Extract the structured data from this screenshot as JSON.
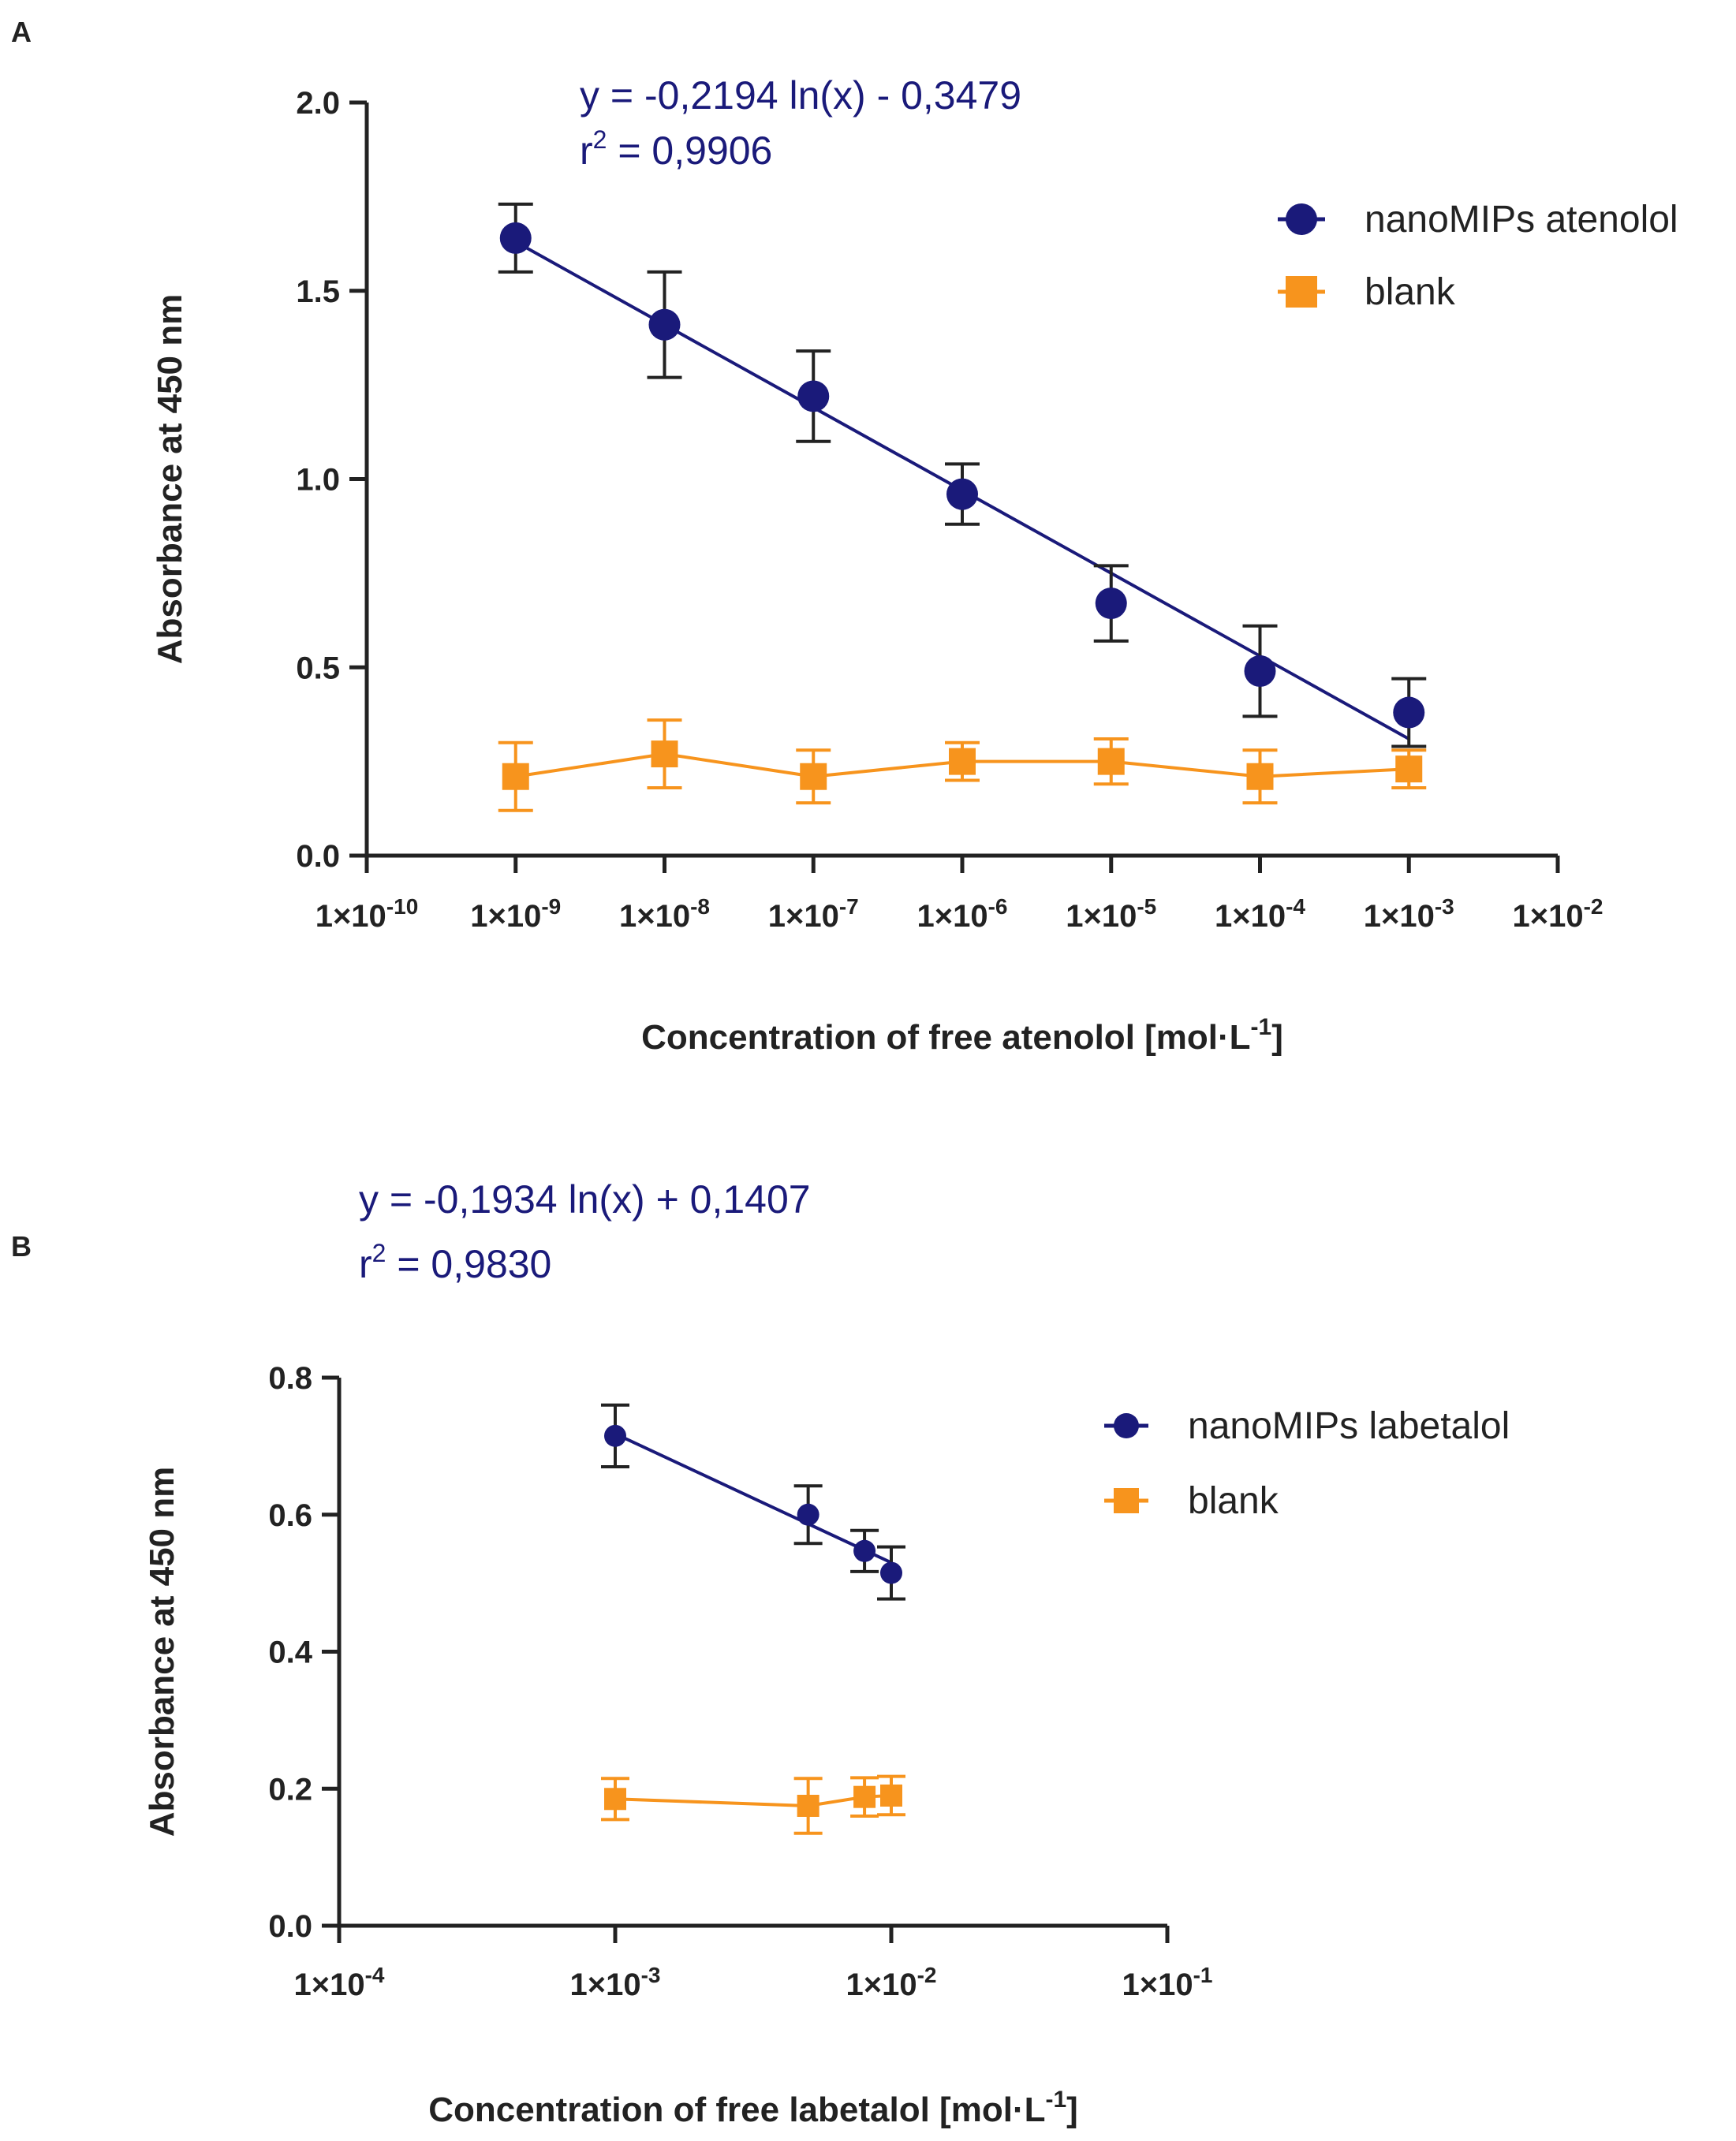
{
  "chart_data": [
    {
      "panel": "A",
      "type": "scatter",
      "xscale": "log",
      "xlim": [
        1e-10,
        0.01
      ],
      "ylim": [
        0,
        2.0
      ],
      "x_ticks": [
        1e-10,
        1e-09,
        1e-08,
        1e-07,
        1e-06,
        1e-05,
        0.0001,
        0.001,
        0.01
      ],
      "x_tick_labels": [
        {
          "base": "1×10",
          "exp": "-10"
        },
        {
          "base": "1×10",
          "exp": "-9"
        },
        {
          "base": "1×10",
          "exp": "-8"
        },
        {
          "base": "1×10",
          "exp": "-7"
        },
        {
          "base": "1×10",
          "exp": "-6"
        },
        {
          "base": "1×10",
          "exp": "-5"
        },
        {
          "base": "1×10",
          "exp": "-4"
        },
        {
          "base": "1×10",
          "exp": "-3"
        },
        {
          "base": "1×10",
          "exp": "-2"
        }
      ],
      "y_ticks": [
        0,
        0.5,
        1.0,
        1.5,
        2.0
      ],
      "y_tick_labels": [
        "0.0",
        "0.5",
        "1.0",
        "1.5",
        "2.0"
      ],
      "xlabel": {
        "text": "Concentration of free atenolol [mol·L",
        "sup": "-1",
        "tail": "]"
      },
      "ylabel": "Absorbance at 450 nm",
      "equation": "y = -0,2194 ln(x) - 0,3479",
      "r2": {
        "prefix": "r",
        "sup": "2",
        "value": " = 0,9906"
      },
      "fit": {
        "series": 0,
        "x": [
          1e-09,
          0.001
        ],
        "y": [
          1.63,
          0.31
        ]
      },
      "legend_position": "top-right",
      "series": [
        {
          "name": "nanoMIPs atenolol",
          "color": "#1a1a7a",
          "marker": "circle",
          "x": [
            1e-09,
            1e-08,
            1e-07,
            1e-06,
            1e-05,
            0.0001,
            0.001
          ],
          "y": [
            1.64,
            1.41,
            1.22,
            0.96,
            0.67,
            0.49,
            0.38
          ],
          "err": [
            0.09,
            0.14,
            0.12,
            0.08,
            0.1,
            0.12,
            0.09
          ],
          "line": false
        },
        {
          "name": "blank",
          "color": "#f7941d",
          "marker": "square",
          "x": [
            1e-09,
            1e-08,
            1e-07,
            1e-06,
            1e-05,
            0.0001,
            0.001
          ],
          "y": [
            0.21,
            0.27,
            0.21,
            0.25,
            0.25,
            0.21,
            0.23
          ],
          "err": [
            0.09,
            0.09,
            0.07,
            0.05,
            0.06,
            0.07,
            0.05
          ],
          "line": true
        }
      ]
    },
    {
      "panel": "B",
      "type": "scatter",
      "xscale": "log",
      "xlim": [
        0.0001,
        0.1
      ],
      "ylim": [
        0,
        0.8
      ],
      "x_ticks": [
        0.0001,
        0.001,
        0.01,
        0.1
      ],
      "x_tick_labels": [
        {
          "base": "1×10",
          "exp": "-4"
        },
        {
          "base": "1×10",
          "exp": "-3"
        },
        {
          "base": "1×10",
          "exp": "-2"
        },
        {
          "base": "1×10",
          "exp": "-1"
        }
      ],
      "y_ticks": [
        0,
        0.2,
        0.4,
        0.6,
        0.8
      ],
      "y_tick_labels": [
        "0.0",
        "0.2",
        "0.4",
        "0.6",
        "0.8"
      ],
      "xlabel": {
        "text": "Concentration of free labetalol [mol·L",
        "sup": "-1",
        "tail": "]"
      },
      "ylabel": "Absorbance at 450 nm",
      "equation": "y = -0,1934 ln(x) + 0,1407",
      "r2": {
        "prefix": "r",
        "sup": "2",
        "value": " = 0,9830"
      },
      "fit": {
        "series": 0,
        "x": [
          0.001,
          0.01
        ],
        "y": [
          0.718,
          0.53
        ]
      },
      "legend_position": "top-right",
      "series": [
        {
          "name": "nanoMIPs labetalol",
          "color": "#1a1a7a",
          "marker": "circle",
          "x": [
            0.001,
            0.005,
            0.008,
            0.01
          ],
          "y": [
            0.715,
            0.6,
            0.547,
            0.515
          ],
          "err": [
            0.045,
            0.042,
            0.03,
            0.038
          ],
          "line": false
        },
        {
          "name": "blank",
          "color": "#f7941d",
          "marker": "square",
          "x": [
            0.001,
            0.005,
            0.008,
            0.01
          ],
          "y": [
            0.185,
            0.175,
            0.188,
            0.19
          ],
          "err": [
            0.03,
            0.04,
            0.028,
            0.028
          ],
          "line": true
        }
      ]
    }
  ]
}
